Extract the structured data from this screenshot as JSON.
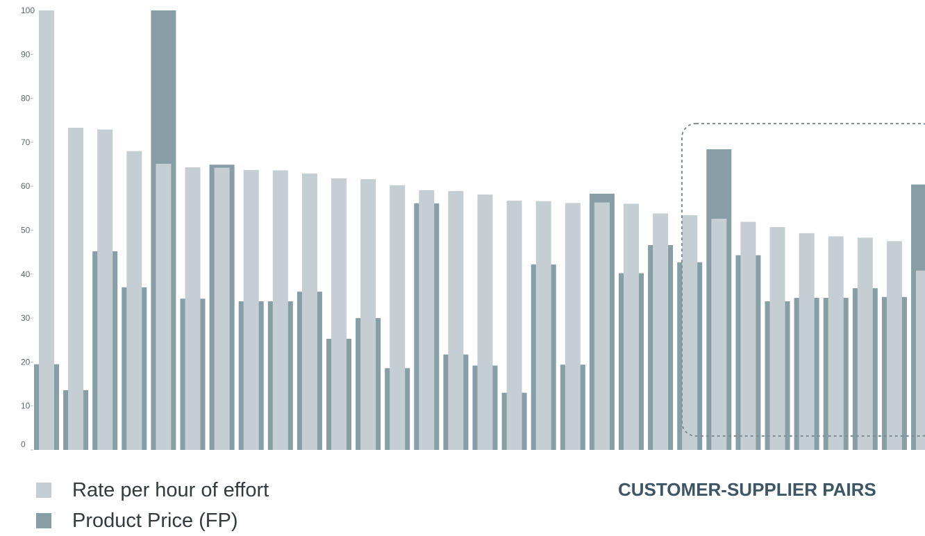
{
  "chart_data": {
    "type": "bar",
    "ylim": [
      0,
      100
    ],
    "yticks": [
      0,
      10,
      20,
      30,
      40,
      50,
      60,
      70,
      80,
      90,
      100
    ],
    "series": [
      {
        "name": "Rate per hour of effort",
        "color": "#c5cfd3",
        "values": [
          100,
          73.3,
          72.9,
          68.0,
          65.1,
          64.3,
          64.2,
          63.7,
          63.6,
          62.9,
          61.8,
          61.6,
          60.2,
          59.1,
          58.9,
          58.1,
          56.7,
          56.6,
          56.2,
          56.3,
          56.0,
          53.8,
          53.4,
          52.6,
          51.9,
          50.7,
          49.3,
          48.6,
          48.3,
          47.5,
          40.8
        ]
      },
      {
        "name": "Product Price (FP)",
        "color": "#879ea6",
        "values": [
          19.5,
          13.6,
          45.2,
          37.0,
          100,
          34.4,
          64.9,
          33.8,
          33.8,
          36.0,
          25.3,
          30.0,
          18.6,
          56.1,
          21.7,
          19.2,
          13.0,
          42.2,
          19.4,
          58.3,
          40.2,
          46.6,
          42.7,
          68.4,
          44.3,
          33.8,
          34.6,
          34.6,
          36.8,
          34.8,
          60.4
        ]
      }
    ],
    "annotation": "CUSTOMER-SUPPLIER PAIRS"
  },
  "legend": [
    {
      "label": "Rate per hour of effort",
      "color": "#c5cfd3"
    },
    {
      "label": "Product Price (FP)",
      "color": "#879ea6"
    }
  ]
}
